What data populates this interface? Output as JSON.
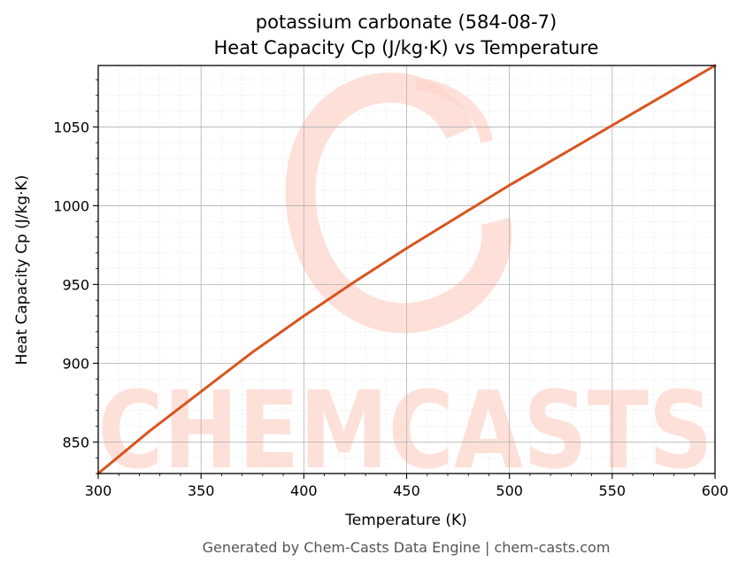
{
  "chart_data": {
    "type": "line",
    "title_line1": "potassium carbonate (584-08-7)",
    "title_line2": "Heat Capacity Cp (J/kg·K) vs Temperature",
    "xlabel": "Temperature (K)",
    "ylabel": "Heat Capacity Cp (J/kg·K)",
    "xlim": [
      300,
      600
    ],
    "ylim": [
      830,
      1089
    ],
    "x_ticks": [
      300,
      350,
      400,
      450,
      500,
      550,
      600
    ],
    "y_ticks": [
      850,
      900,
      950,
      1000,
      1050
    ],
    "grid": true,
    "series": [
      {
        "color": "#d9541e",
        "x": [
          300,
          325,
          350,
          375,
          400,
          425,
          450,
          475,
          500,
          525,
          550,
          575,
          600
        ],
        "y": [
          830,
          857,
          882,
          907,
          930,
          952,
          973,
          993,
          1013,
          1032,
          1051,
          1070,
          1089
        ]
      }
    ]
  },
  "watermark": "CHEMCASTS",
  "footer": "Generated by Chem-Casts Data Engine | chem-casts.com"
}
